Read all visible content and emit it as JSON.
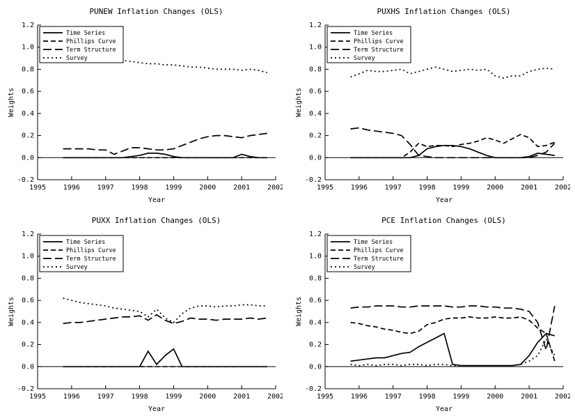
{
  "page": {
    "background": "#ffffff",
    "line_color": "#000000"
  },
  "chart_data": [
    {
      "type": "line",
      "title": "PUNEW Inflation Changes (OLS)",
      "xlabel": "Year",
      "ylabel": "Weights",
      "xlim": [
        1995,
        2002
      ],
      "ylim": [
        -0.2,
        1.2
      ],
      "x_ticks": [
        1995,
        1996,
        1997,
        1998,
        1999,
        2000,
        2001,
        2002
      ],
      "y_ticks": [
        -0.2,
        0,
        0.2,
        0.4,
        0.6,
        0.8,
        1.0,
        1.2
      ],
      "y_tick_labels": [
        "-0.2",
        "0.0",
        "0.2",
        "0.4",
        "0.6",
        "0.8",
        "1.0",
        "1.2"
      ],
      "zero_line": true,
      "grid": false,
      "legend_position": "top-left",
      "x": [
        1995.75,
        1996,
        1996.25,
        1996.5,
        1996.75,
        1997,
        1997.25,
        1997.5,
        1997.75,
        1998,
        1998.25,
        1998.5,
        1998.75,
        1999,
        1999.25,
        1999.5,
        1999.75,
        2000,
        2000.25,
        2000.5,
        2000.75,
        2001,
        2001.25,
        2001.5,
        2001.75
      ],
      "series": [
        {
          "name": "Time Series",
          "style": "solid",
          "values": [
            0,
            0,
            0,
            0,
            0,
            0,
            0,
            0,
            0.01,
            0.02,
            0.04,
            0.04,
            0.03,
            0.01,
            0,
            0,
            0,
            0,
            0,
            0,
            0,
            0.03,
            0.01,
            0,
            0
          ]
        },
        {
          "name": "Phillips Curve",
          "style": "dash",
          "values": [
            0,
            0,
            0,
            0,
            0,
            0,
            0,
            0,
            0,
            0,
            0,
            0,
            0,
            0,
            0,
            0,
            0,
            0,
            0,
            0,
            0,
            0,
            0,
            0,
            0
          ]
        },
        {
          "name": "Term Structure",
          "style": "longdash",
          "values": [
            0.08,
            0.08,
            0.08,
            0.08,
            0.07,
            0.07,
            0.03,
            0.06,
            0.09,
            0.09,
            0.08,
            0.07,
            0.07,
            0.08,
            0.11,
            0.14,
            0.17,
            0.19,
            0.2,
            0.2,
            0.19,
            0.18,
            0.2,
            0.21,
            0.22
          ]
        },
        {
          "name": "Survey",
          "style": "dotted",
          "values": [
            0.93,
            0.93,
            0.93,
            0.93,
            0.93,
            0.92,
            0.9,
            0.88,
            0.87,
            0.86,
            0.85,
            0.85,
            0.84,
            0.84,
            0.83,
            0.82,
            0.82,
            0.81,
            0.8,
            0.8,
            0.8,
            0.79,
            0.8,
            0.79,
            0.77
          ]
        }
      ]
    },
    {
      "type": "line",
      "title": "PUXHS Inflation Changes (OLS)",
      "xlabel": "Year",
      "ylabel": "Weights",
      "xlim": [
        1995,
        2002
      ],
      "ylim": [
        -0.2,
        1.2
      ],
      "x_ticks": [
        1995,
        1996,
        1997,
        1998,
        1999,
        2000,
        2001,
        2002
      ],
      "y_ticks": [
        -0.2,
        0,
        0.2,
        0.4,
        0.6,
        0.8,
        1.0,
        1.2
      ],
      "y_tick_labels": [
        "-0.2",
        "0.0",
        "0.2",
        "0.4",
        "0.6",
        "0.8",
        "1.0",
        "1.2"
      ],
      "zero_line": true,
      "grid": false,
      "legend_position": "top-left",
      "x": [
        1995.75,
        1996,
        1996.25,
        1996.5,
        1996.75,
        1997,
        1997.25,
        1997.5,
        1997.75,
        1998,
        1998.25,
        1998.5,
        1998.75,
        1999,
        1999.25,
        1999.5,
        1999.75,
        2000,
        2000.25,
        2000.5,
        2000.75,
        2001,
        2001.25,
        2001.5,
        2001.75
      ],
      "series": [
        {
          "name": "Time Series",
          "style": "solid",
          "values": [
            0,
            0,
            0,
            0,
            0,
            0,
            0,
            0,
            0.02,
            0.08,
            0.1,
            0.11,
            0.11,
            0.1,
            0.08,
            0.05,
            0.02,
            0,
            0,
            0,
            0,
            0.01,
            0.04,
            0.03,
            0.02
          ]
        },
        {
          "name": "Phillips Curve",
          "style": "dash",
          "values": [
            0,
            0,
            0,
            0,
            0,
            0,
            0,
            0.05,
            0.13,
            0.1,
            0.11,
            0.11,
            0.1,
            0.12,
            0.13,
            0.15,
            0.18,
            0.16,
            0.13,
            0.17,
            0.21,
            0.18,
            0.1,
            0.11,
            0.14
          ]
        },
        {
          "name": "Term Structure",
          "style": "longdash",
          "values": [
            0.26,
            0.27,
            0.25,
            0.24,
            0.23,
            0.22,
            0.2,
            0.12,
            0.02,
            0.01,
            0,
            0,
            0,
            0,
            0,
            0,
            0,
            0,
            0,
            0,
            0,
            0,
            0.02,
            0.05,
            0.13
          ]
        },
        {
          "name": "Survey",
          "style": "dotted",
          "values": [
            0.73,
            0.76,
            0.79,
            0.78,
            0.78,
            0.79,
            0.8,
            0.76,
            0.78,
            0.8,
            0.82,
            0.8,
            0.78,
            0.79,
            0.8,
            0.79,
            0.8,
            0.74,
            0.72,
            0.74,
            0.74,
            0.78,
            0.8,
            0.81,
            0.8
          ]
        }
      ]
    },
    {
      "type": "line",
      "title": "PUXX Inflation Changes (OLS)",
      "xlabel": "Year",
      "ylabel": "Weights",
      "xlim": [
        1995,
        2002
      ],
      "ylim": [
        -0.2,
        1.2
      ],
      "x_ticks": [
        1995,
        1996,
        1997,
        1998,
        1999,
        2000,
        2001,
        2002
      ],
      "y_ticks": [
        -0.2,
        0,
        0.2,
        0.4,
        0.6,
        0.8,
        1.0,
        1.2
      ],
      "y_tick_labels": [
        "-0.2",
        "0.0",
        "0.2",
        "0.4",
        "0.6",
        "0.8",
        "1.0",
        "1.2"
      ],
      "zero_line": true,
      "grid": false,
      "legend_position": "top-left",
      "x": [
        1995.75,
        1996,
        1996.25,
        1996.5,
        1996.75,
        1997,
        1997.25,
        1997.5,
        1997.75,
        1998,
        1998.25,
        1998.5,
        1998.75,
        1999,
        1999.25,
        1999.5,
        1999.75,
        2000,
        2000.25,
        2000.5,
        2000.75,
        2001,
        2001.25,
        2001.5,
        2001.75
      ],
      "series": [
        {
          "name": "Time Series",
          "style": "solid",
          "values": [
            0,
            0,
            0,
            0,
            0,
            0,
            0,
            0,
            0,
            0,
            0.14,
            0.02,
            0.1,
            0.16,
            0,
            0,
            0,
            0,
            0,
            0,
            0,
            0,
            0,
            0,
            0
          ]
        },
        {
          "name": "Phillips Curve",
          "style": "dash",
          "values": [
            0,
            0,
            0,
            0,
            0,
            0,
            0,
            0,
            0,
            0,
            0,
            0,
            0,
            0,
            0,
            0,
            0,
            0,
            0,
            0,
            0,
            0,
            0,
            0,
            0
          ]
        },
        {
          "name": "Term Structure",
          "style": "longdash",
          "values": [
            0.39,
            0.4,
            0.4,
            0.41,
            0.42,
            0.43,
            0.44,
            0.45,
            0.45,
            0.46,
            0.42,
            0.47,
            0.42,
            0.39,
            0.41,
            0.44,
            0.43,
            0.43,
            0.42,
            0.43,
            0.43,
            0.43,
            0.44,
            0.43,
            0.44
          ]
        },
        {
          "name": "Survey",
          "style": "dotted",
          "values": [
            0.62,
            0.6,
            0.58,
            0.57,
            0.56,
            0.55,
            0.53,
            0.52,
            0.51,
            0.5,
            0.45,
            0.52,
            0.44,
            0.4,
            0.48,
            0.53,
            0.55,
            0.55,
            0.54,
            0.55,
            0.55,
            0.56,
            0.56,
            0.55,
            0.55
          ]
        }
      ]
    },
    {
      "type": "line",
      "title": "PCE Inflation Changes (OLS)",
      "xlabel": "Year",
      "ylabel": "Weights",
      "xlim": [
        1995,
        2002
      ],
      "ylim": [
        -0.2,
        1.2
      ],
      "x_ticks": [
        1995,
        1996,
        1997,
        1998,
        1999,
        2000,
        2001,
        2002
      ],
      "y_ticks": [
        -0.2,
        0,
        0.2,
        0.4,
        0.6,
        0.8,
        1.0,
        1.2
      ],
      "y_tick_labels": [
        "-0.2",
        "0.0",
        "0.2",
        "0.4",
        "0.6",
        "0.8",
        "1.0",
        "1.2"
      ],
      "zero_line": true,
      "grid": false,
      "legend_position": "top-left",
      "x": [
        1995.75,
        1996,
        1996.25,
        1996.5,
        1996.75,
        1997,
        1997.25,
        1997.5,
        1997.75,
        1998,
        1998.25,
        1998.5,
        1998.75,
        1999,
        1999.25,
        1999.5,
        1999.75,
        2000,
        2000.25,
        2000.5,
        2000.75,
        2001,
        2001.25,
        2001.5,
        2001.75
      ],
      "series": [
        {
          "name": "Time Series",
          "style": "solid",
          "values": [
            0.05,
            0.06,
            0.07,
            0.08,
            0.08,
            0.1,
            0.12,
            0.13,
            0.18,
            0.22,
            0.26,
            0.3,
            0.02,
            0.01,
            0.01,
            0.01,
            0.01,
            0.01,
            0.01,
            0.01,
            0.02,
            0.1,
            0.22,
            0.3,
            0.28
          ]
        },
        {
          "name": "Phillips Curve",
          "style": "dash",
          "values": [
            0.4,
            0.39,
            0.37,
            0.36,
            0.34,
            0.33,
            0.31,
            0.3,
            0.32,
            0.38,
            0.4,
            0.43,
            0.44,
            0.44,
            0.45,
            0.44,
            0.44,
            0.45,
            0.44,
            0.44,
            0.45,
            0.42,
            0.35,
            0.3,
            0.05
          ]
        },
        {
          "name": "Term Structure",
          "style": "longdash",
          "values": [
            0.53,
            0.54,
            0.54,
            0.55,
            0.55,
            0.55,
            0.54,
            0.54,
            0.55,
            0.55,
            0.55,
            0.55,
            0.54,
            0.54,
            0.55,
            0.55,
            0.54,
            0.54,
            0.53,
            0.53,
            0.52,
            0.5,
            0.4,
            0.15,
            0.55
          ]
        },
        {
          "name": "Survey",
          "style": "dotted",
          "values": [
            0.02,
            0.01,
            0.02,
            0.01,
            0.02,
            0.02,
            0.01,
            0.02,
            0.02,
            0.01,
            0.02,
            0.02,
            0.01,
            0.01,
            0.01,
            0.01,
            0.01,
            0.01,
            0.01,
            0.01,
            0.02,
            0.05,
            0.1,
            0.25,
            0.1
          ]
        }
      ]
    }
  ]
}
